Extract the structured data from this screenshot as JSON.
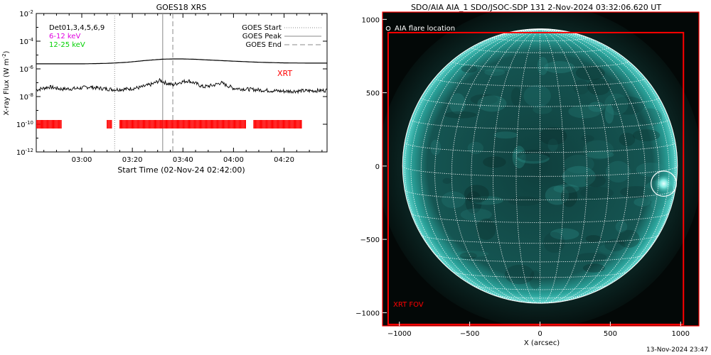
{
  "colors": {
    "xrt": "#ff0000",
    "band_6_12": "#e000e0",
    "band_12_25": "#00d000",
    "sun_face": "#0f3f3d",
    "sun_limb": "#62d8d0",
    "sun_corona": "#0a2220"
  },
  "left_panel": {
    "title": "GOES18 XRS",
    "ylabel": "X-ray Flux (W m",
    "ylabel_sup": "-2",
    "ylabel_close": ")",
    "xlabel": "Start Time (02-Nov-24 02:42:00)",
    "det_label": "Det01,3,4,5,6,9",
    "band_6_12": "6-12 keV",
    "band_12_25": "12-25 keV",
    "legend": {
      "start": "GOES Start",
      "peak": "GOES Peak",
      "end": "GOES End"
    },
    "xrt_label": "XRT"
  },
  "right_panel": {
    "title": "SDO/AIA AIA_1 SDO/JSOC-SDP 131  2-Nov-2024 03:32:06.620 UT",
    "flare_label": "AIA flare location",
    "fov_label": "XRT FOV",
    "xlabel": "X (arcsec)"
  },
  "footer": "13-Nov-2024 23:47",
  "chart_data": [
    {
      "type": "line",
      "title": "GOES18 XRS",
      "xlabel": "Start Time (02-Nov-24 02:42:00)",
      "ylabel": "X-ray Flux (W m-2)",
      "yscale": "log",
      "xlim": [
        "02:42",
        "04:37"
      ],
      "ylim": [
        1e-12,
        0.01
      ],
      "x_ticks": [
        "03:00",
        "03:20",
        "03:40",
        "04:00",
        "04:20"
      ],
      "y_ticks": [
        {
          "value": 0.01,
          "base": "10",
          "exp": "-2"
        },
        {
          "value": 0.0001,
          "base": "10",
          "exp": "-4"
        },
        {
          "value": 1e-06,
          "base": "10",
          "exp": "-6"
        },
        {
          "value": 1e-08,
          "base": "10",
          "exp": "-8"
        },
        {
          "value": 1e-10,
          "base": "10",
          "exp": "-10"
        },
        {
          "value": 1e-12,
          "base": "10",
          "exp": "-12"
        }
      ],
      "series": [
        {
          "x": [
            "02:42",
            "02:50",
            "03:00",
            "03:10",
            "03:18",
            "03:25",
            "03:32",
            "03:36",
            "03:40",
            "03:45",
            "03:50",
            "04:00",
            "04:10",
            "04:20",
            "04:30",
            "04:37"
          ],
          "y": [
            2.3e-06,
            2.3e-06,
            2.3e-06,
            2.5e-06,
            3e-06,
            4e-06,
            5e-06,
            5.2e-06,
            5.2e-06,
            4.9e-06,
            4.4e-06,
            3.6e-06,
            3e-06,
            2.7e-06,
            2.6e-06,
            2.6e-06
          ]
        },
        {
          "x": [
            "02:42",
            "02:47",
            "02:52",
            "02:58",
            "03:03",
            "03:08",
            "03:13",
            "03:18",
            "03:23",
            "03:28",
            "03:31",
            "03:33",
            "03:36",
            "03:39",
            "03:42",
            "03:45",
            "03:48",
            "03:52",
            "03:55",
            "04:00",
            "04:10",
            "04:20",
            "04:30",
            "04:37"
          ],
          "y": [
            3e-08,
            5e-08,
            3.5e-08,
            3.8e-08,
            5e-08,
            3.8e-08,
            3.2e-08,
            3.5e-08,
            4.5e-08,
            8e-08,
            1.5e-07,
            1e-07,
            7e-08,
            1.1e-07,
            1.4e-07,
            9e-08,
            5e-08,
            6.5e-08,
            1e-07,
            4e-08,
            3e-08,
            2.4e-08,
            2.6e-08,
            2.8e-08
          ]
        }
      ],
      "markers": {
        "goes_start": "03:13",
        "goes_peak": "03:32",
        "goes_end": "03:36"
      },
      "xrt_intervals": [
        [
          "02:42",
          "02:52"
        ],
        [
          "03:10",
          "03:12"
        ],
        [
          "03:15",
          "04:05"
        ],
        [
          "04:08",
          "04:27"
        ]
      ],
      "xrt_level": 1e-10
    },
    {
      "type": "image",
      "title": "SDO/AIA AIA_1 SDO/JSOC-SDP 131  2-Nov-2024 03:32:06.620 UT",
      "xlabel": "X (arcsec)",
      "xlim": [
        -1120,
        1130
      ],
      "ylim": [
        -1090,
        1050
      ],
      "x_ticks": [
        -1000,
        -500,
        0,
        500,
        1000
      ],
      "y_ticks": [
        1000,
        500,
        0,
        -500,
        -1000
      ],
      "solar_radius": 977,
      "flare_location": {
        "x": 880,
        "y": -120,
        "radius": 90
      },
      "xrt_fov": {
        "x0": -1080,
        "x1": 1020,
        "y0": -1080,
        "y1": 910
      }
    }
  ]
}
